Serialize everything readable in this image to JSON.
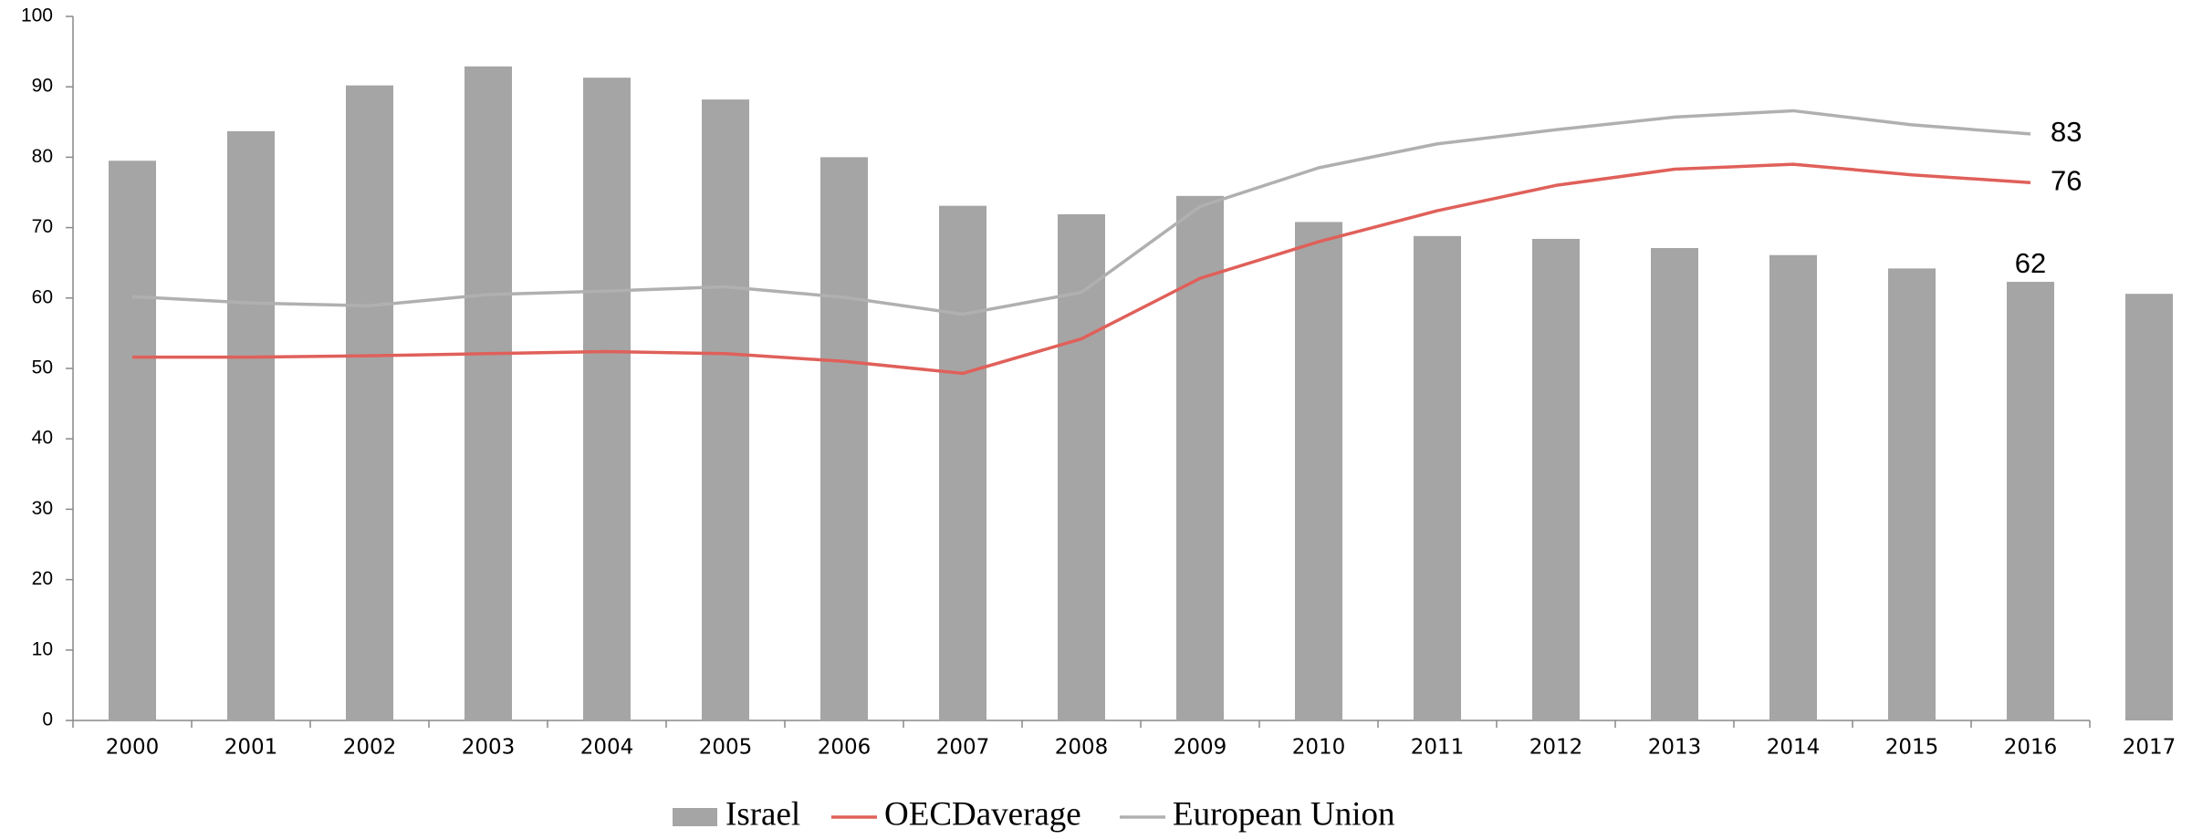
{
  "chart_data": {
    "type": "bar+line",
    "categories": [
      "2000",
      "2001",
      "2002",
      "2003",
      "2004",
      "2005",
      "2006",
      "2007",
      "2008",
      "2009",
      "2010",
      "2011",
      "2012",
      "2013",
      "2014",
      "2015",
      "2016",
      "2017"
    ],
    "series": [
      {
        "name": "Israel",
        "type": "bar",
        "color": "#a5a5a5",
        "values": [
          79.5,
          83.7,
          90.2,
          92.9,
          91.3,
          88.2,
          80.0,
          73.1,
          71.9,
          74.5,
          70.8,
          68.8,
          68.4,
          67.1,
          66.1,
          64.2,
          62.3,
          60.6
        ],
        "value_labels": [
          null,
          null,
          null,
          null,
          null,
          null,
          null,
          null,
          null,
          null,
          null,
          null,
          null,
          null,
          null,
          null,
          "62",
          null
        ]
      },
      {
        "name": "OECDaverage",
        "type": "line",
        "color": "#e0605a",
        "values": [
          51.6,
          51.6,
          51.8,
          52.1,
          52.4,
          52.1,
          51.0,
          49.3,
          54.2,
          62.8,
          68.0,
          72.4,
          76.0,
          78.3,
          79.0,
          77.5,
          76.4,
          null
        ],
        "value_labels": [
          null,
          null,
          null,
          null,
          null,
          null,
          null,
          null,
          null,
          null,
          null,
          null,
          null,
          null,
          null,
          null,
          "76",
          null
        ]
      },
      {
        "name": "European Union",
        "type": "line",
        "color": "#b0b0b0",
        "values": [
          60.2,
          59.3,
          58.9,
          60.5,
          61.0,
          61.6,
          60.1,
          57.7,
          60.8,
          73.0,
          78.5,
          81.9,
          83.9,
          85.7,
          86.6,
          84.6,
          83.3,
          null
        ],
        "value_labels": [
          null,
          null,
          null,
          null,
          null,
          null,
          null,
          null,
          null,
          null,
          null,
          null,
          null,
          null,
          null,
          null,
          "83",
          null
        ]
      }
    ],
    "ylim": [
      0,
      100
    ],
    "yticks": [
      0,
      10,
      20,
      30,
      40,
      50,
      60,
      70,
      80,
      90,
      100
    ],
    "grid": false,
    "legend": "bottom"
  }
}
